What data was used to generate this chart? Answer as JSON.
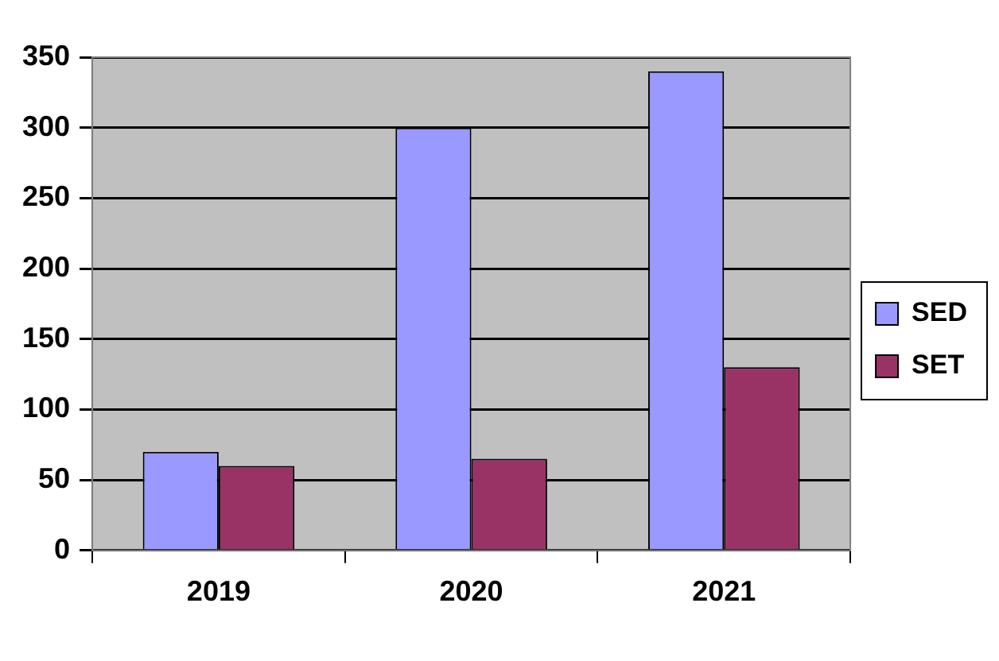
{
  "chart_data": {
    "type": "bar",
    "categories": [
      "2019",
      "2020",
      "2021"
    ],
    "series": [
      {
        "name": "SED",
        "color": "#9999ff",
        "values": [
          70,
          300,
          340
        ]
      },
      {
        "name": "SET",
        "color": "#993366",
        "values": [
          60,
          65,
          130
        ]
      }
    ],
    "ylim": [
      0,
      350
    ],
    "yticks": [
      0,
      50,
      100,
      150,
      200,
      250,
      300,
      350
    ],
    "grid": "y",
    "legend": "right"
  }
}
